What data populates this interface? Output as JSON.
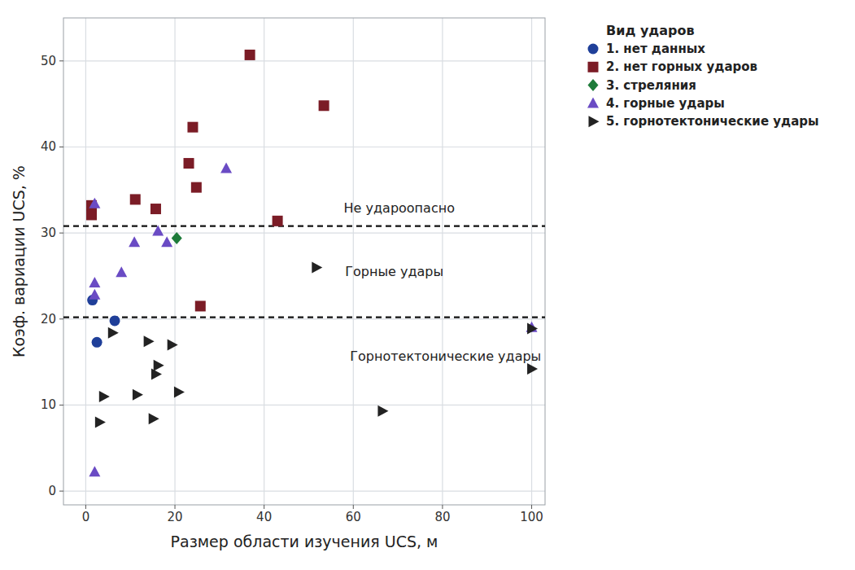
{
  "chart_data": {
    "type": "scatter",
    "x_label": "Размер области изучения UCS, м",
    "y_label": "Коэф. вариации UCS, %",
    "legend_title": "Вид ударов",
    "legend": "right",
    "grid": true,
    "xlim": [
      -5,
      103
    ],
    "ylim": [
      -1.6,
      55
    ],
    "xticks": [
      0,
      20,
      40,
      60,
      80,
      100
    ],
    "yticks": [
      0,
      10,
      20,
      30,
      40,
      50
    ],
    "hlines": [
      30.8,
      20.2
    ],
    "annotations": [
      {
        "text": "Не удароопасно",
        "x": 70.3,
        "y": 32.9
      },
      {
        "text": "Горные удары",
        "x": 69.2,
        "y": 25.6
      },
      {
        "text": "Горнотектонические удары",
        "x": 80.7,
        "y": 15.7
      }
    ],
    "series": [
      {
        "name": "1. нет данных",
        "color": "#1f3f99",
        "marker": "circle",
        "x": [
          1.5,
          2.5,
          6.5
        ],
        "values": [
          22.2,
          17.3,
          19.8
        ]
      },
      {
        "name": "2. нет горных ударов",
        "color": "#7b1c26",
        "marker": "square",
        "x": [
          1.3,
          1.3,
          11.1,
          15.7,
          23.1,
          24.0,
          24.8,
          25.7,
          36.8,
          43.0,
          53.4
        ],
        "values": [
          33.2,
          32.1,
          33.9,
          32.8,
          38.1,
          42.3,
          35.3,
          21.5,
          50.7,
          31.4,
          44.8
        ]
      },
      {
        "name": "3. стреляния",
        "color": "#1e7b3a",
        "marker": "diamond",
        "x": [
          20.4
        ],
        "values": [
          29.4
        ]
      },
      {
        "name": "4. горные удары",
        "color": "#6a4bc4",
        "marker": "triangle",
        "x": [
          2.0,
          2.0,
          2.0,
          2.0,
          8.0,
          10.9,
          16.2,
          18.2,
          31.5,
          100
        ],
        "values": [
          33.4,
          24.2,
          22.8,
          2.2,
          25.4,
          28.9,
          30.2,
          28.9,
          37.5,
          19.0
        ]
      },
      {
        "name": "5. горнотектонические удары",
        "color": "#222222",
        "marker": "triangle-right",
        "x": [
          51.7,
          6.0,
          14.0,
          19.3,
          16.2,
          15.7,
          4.0,
          11.5,
          20.8,
          3.1,
          15.1,
          66.5,
          100,
          100
        ],
        "values": [
          26.0,
          18.4,
          17.4,
          17.0,
          14.6,
          13.6,
          11.0,
          11.2,
          11.5,
          8.0,
          8.4,
          9.3,
          18.9,
          14.2
        ]
      }
    ]
  }
}
